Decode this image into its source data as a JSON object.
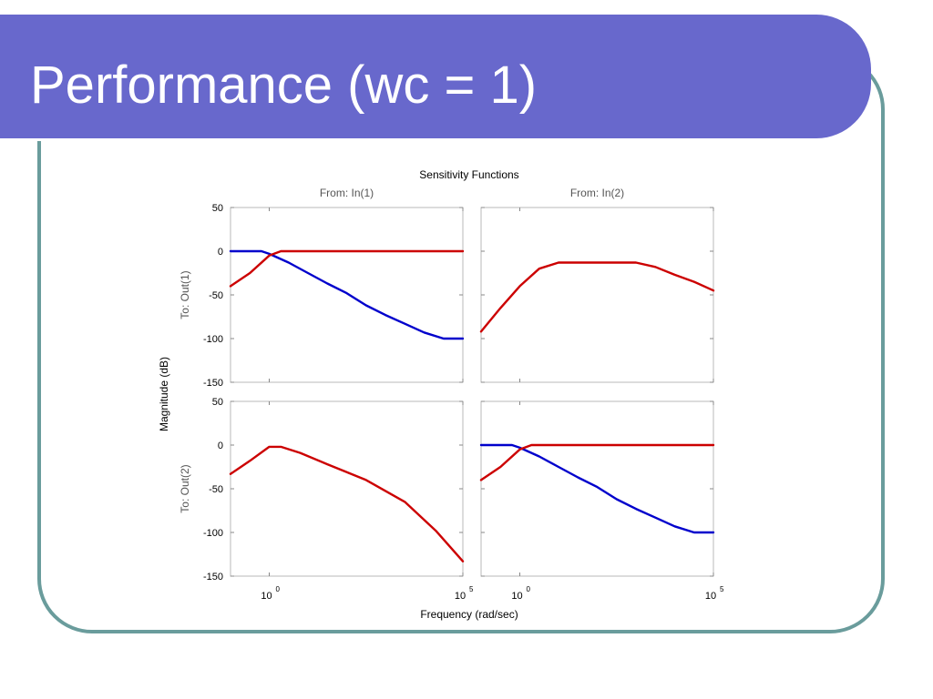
{
  "slide": {
    "title": "Performance (wc = 1)",
    "colors": {
      "title_bar": "#6868cc",
      "frame_border": "#6a9c9c",
      "title_text": "#ffffff"
    }
  },
  "chart_data": {
    "type": "line",
    "title": "Sensitivity Functions",
    "xlabel": "Frequency  (rad/sec)",
    "ylabel": "Magnitude (dB)",
    "x_scale": "log",
    "xlim_log10": [
      -1,
      5
    ],
    "ylim": [
      -150,
      50
    ],
    "yticks": [
      50,
      0,
      -50,
      -100,
      -150
    ],
    "xticks": [
      {
        "base": "10",
        "exp": "0",
        "log10": 0
      },
      {
        "base": "10",
        "exp": "5",
        "log10": 5
      }
    ],
    "columns": [
      "From: In(1)",
      "From: In(2)"
    ],
    "rows": [
      "To: Out(1)",
      "To: Out(2)"
    ],
    "series_colors": {
      "blue": "#0000cc",
      "red": "#cc0000"
    },
    "panels": [
      {
        "row": 0,
        "col": 0,
        "series": [
          {
            "color": "blue",
            "points": [
              [
                -1,
                0
              ],
              [
                -0.2,
                0
              ],
              [
                0,
                -3
              ],
              [
                0.5,
                -13
              ],
              [
                1,
                -25
              ],
              [
                1.5,
                -37
              ],
              [
                2,
                -48
              ],
              [
                2.5,
                -62
              ],
              [
                3,
                -73
              ],
              [
                3.5,
                -83
              ],
              [
                4,
                -93
              ],
              [
                4.5,
                -100
              ],
              [
                5,
                -100
              ]
            ]
          },
          {
            "color": "red",
            "points": [
              [
                -1,
                -40
              ],
              [
                -0.5,
                -25
              ],
              [
                0,
                -5
              ],
              [
                0.3,
                0
              ],
              [
                5,
                0
              ]
            ]
          }
        ]
      },
      {
        "row": 0,
        "col": 1,
        "series": [
          {
            "color": "red",
            "points": [
              [
                -1,
                -92
              ],
              [
                -0.5,
                -65
              ],
              [
                0,
                -40
              ],
              [
                0.5,
                -20
              ],
              [
                1,
                -13
              ],
              [
                2,
                -13
              ],
              [
                3,
                -13
              ],
              [
                3.5,
                -18
              ],
              [
                4,
                -27
              ],
              [
                4.5,
                -35
              ],
              [
                5,
                -45
              ]
            ]
          }
        ]
      },
      {
        "row": 1,
        "col": 0,
        "series": [
          {
            "color": "red",
            "points": [
              [
                -1,
                -33
              ],
              [
                -0.5,
                -18
              ],
              [
                0,
                -2
              ],
              [
                0.3,
                -2
              ],
              [
                0.8,
                -9
              ],
              [
                1.5,
                -22
              ],
              [
                2.5,
                -40
              ],
              [
                3.5,
                -65
              ],
              [
                4.3,
                -98
              ],
              [
                5,
                -133
              ]
            ]
          }
        ]
      },
      {
        "row": 1,
        "col": 1,
        "series": [
          {
            "color": "blue",
            "points": [
              [
                -1,
                0
              ],
              [
                -0.2,
                0
              ],
              [
                0,
                -3
              ],
              [
                0.5,
                -13
              ],
              [
                1,
                -25
              ],
              [
                1.5,
                -37
              ],
              [
                2,
                -48
              ],
              [
                2.5,
                -62
              ],
              [
                3,
                -73
              ],
              [
                3.5,
                -83
              ],
              [
                4,
                -93
              ],
              [
                4.5,
                -100
              ],
              [
                5,
                -100
              ]
            ]
          },
          {
            "color": "red",
            "points": [
              [
                -1,
                -40
              ],
              [
                -0.5,
                -25
              ],
              [
                0,
                -5
              ],
              [
                0.3,
                0
              ],
              [
                5,
                0
              ]
            ]
          }
        ]
      }
    ]
  }
}
